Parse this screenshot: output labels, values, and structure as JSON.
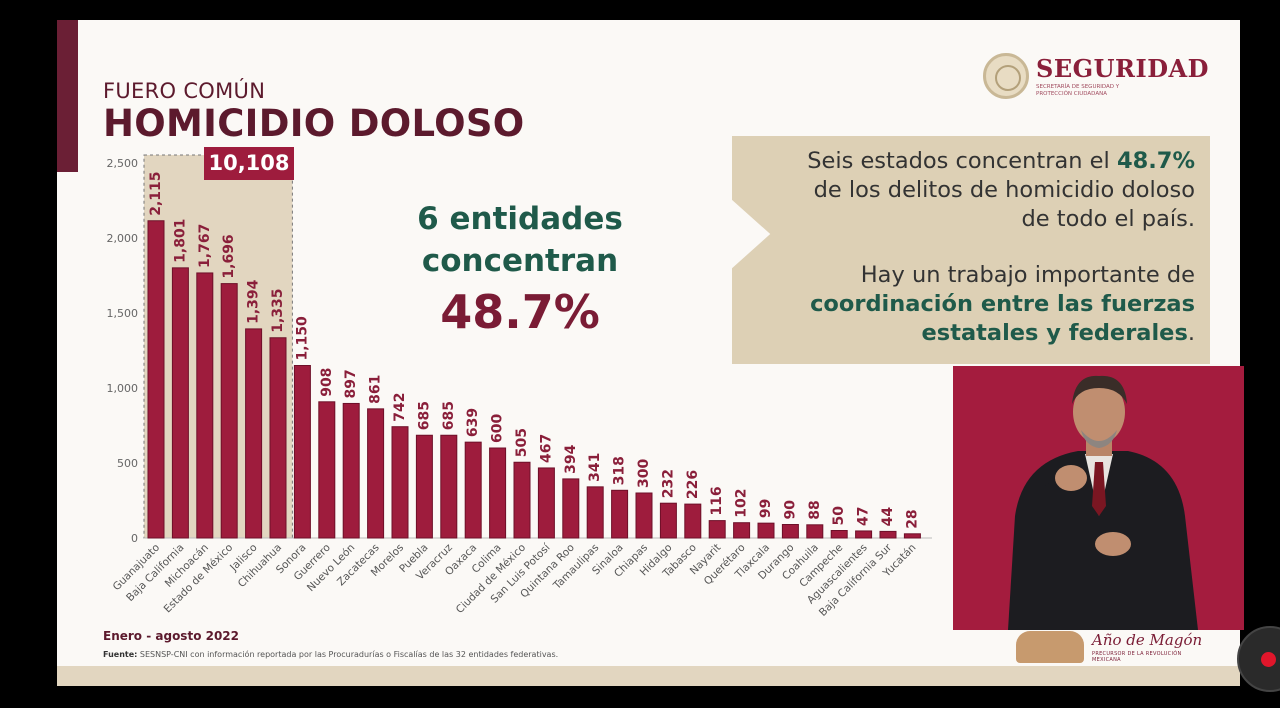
{
  "header": {
    "subtitle": "FUERO COMÚN",
    "title": "HOMICIDIO DOLOSO"
  },
  "logo": {
    "word": "SEGURIDAD",
    "sub": "SECRETARÍA DE SEGURIDAD Y PROTECCIÓN CIUDADANA"
  },
  "total_label": "10,108",
  "callout": {
    "line1": "6 entidades",
    "line2": "concentran",
    "pct": "48.7%"
  },
  "info": {
    "p1_a": "Seis estados concentran el ",
    "p1_pct": "48.7%",
    "p1_b": "de los delitos de homicidio doloso",
    "p1_c": "de todo el país.",
    "p2_a": "Hay un trabajo importante de",
    "p2_b": "coordinación entre las fuerzas",
    "p2_c": "estatales y federales",
    "p2_end": "."
  },
  "footer": {
    "period": "Enero - agosto 2022",
    "source_label": "Fuente:",
    "source_text": " SESNSP-CNI con información reportada por las Procuradurías o Fiscalías de las 32 entidades federativas."
  },
  "magon": {
    "text": "Año de Magón",
    "sub": "PRECURSOR DE LA REVOLUCIÓN MEXICANA"
  },
  "colors": {
    "bar": "#9e1c3d",
    "bar_edge": "#6e1029",
    "highlight_box": "#e2d6c0",
    "label": "#8a1f3a",
    "accent_green": "#1f5a4a"
  },
  "chart_data": {
    "type": "bar",
    "categories": [
      "Guanajuato",
      "Baja California",
      "Michoacán",
      "Estado de México",
      "Jalisco",
      "Chihuahua",
      "Sonora",
      "Guerrero",
      "Nuevo León",
      "Zacatecas",
      "Morelos",
      "Puebla",
      "Veracruz",
      "Oaxaca",
      "Colima",
      "Ciudad de México",
      "San Luis Potosí",
      "Quintana Roo",
      "Tamaulipas",
      "Sinaloa",
      "Chiapas",
      "Hidalgo",
      "Tabasco",
      "Nayarit",
      "Querétaro",
      "Tlaxcala",
      "Durango",
      "Coahuila",
      "Campeche",
      "Aguascalientes",
      "Baja California Sur",
      "Yucatán"
    ],
    "values": [
      2115,
      1801,
      1767,
      1696,
      1394,
      1335,
      1150,
      908,
      897,
      861,
      742,
      685,
      685,
      639,
      600,
      505,
      467,
      394,
      341,
      318,
      300,
      232,
      226,
      116,
      102,
      99,
      90,
      88,
      50,
      47,
      44,
      28
    ],
    "value_labels": [
      "2,115",
      "1,801",
      "1,767",
      "1,696",
      "1,394",
      "1,335",
      "1,150",
      "908",
      "897",
      "861",
      "742",
      "685",
      "685",
      "639",
      "600",
      "505",
      "467",
      "394",
      "341",
      "318",
      "300",
      "232",
      "226",
      "116",
      "102",
      "99",
      "90",
      "88",
      "50",
      "47",
      "44",
      "28"
    ],
    "yticks": [
      0,
      500,
      1000,
      1500,
      2000,
      2500
    ],
    "ytick_labels": [
      "0",
      "500",
      "1,000",
      "1,500",
      "2,000",
      "2,500"
    ],
    "ylim": [
      0,
      2500
    ],
    "highlighted_count": 6,
    "grid": false,
    "legend": "none"
  }
}
